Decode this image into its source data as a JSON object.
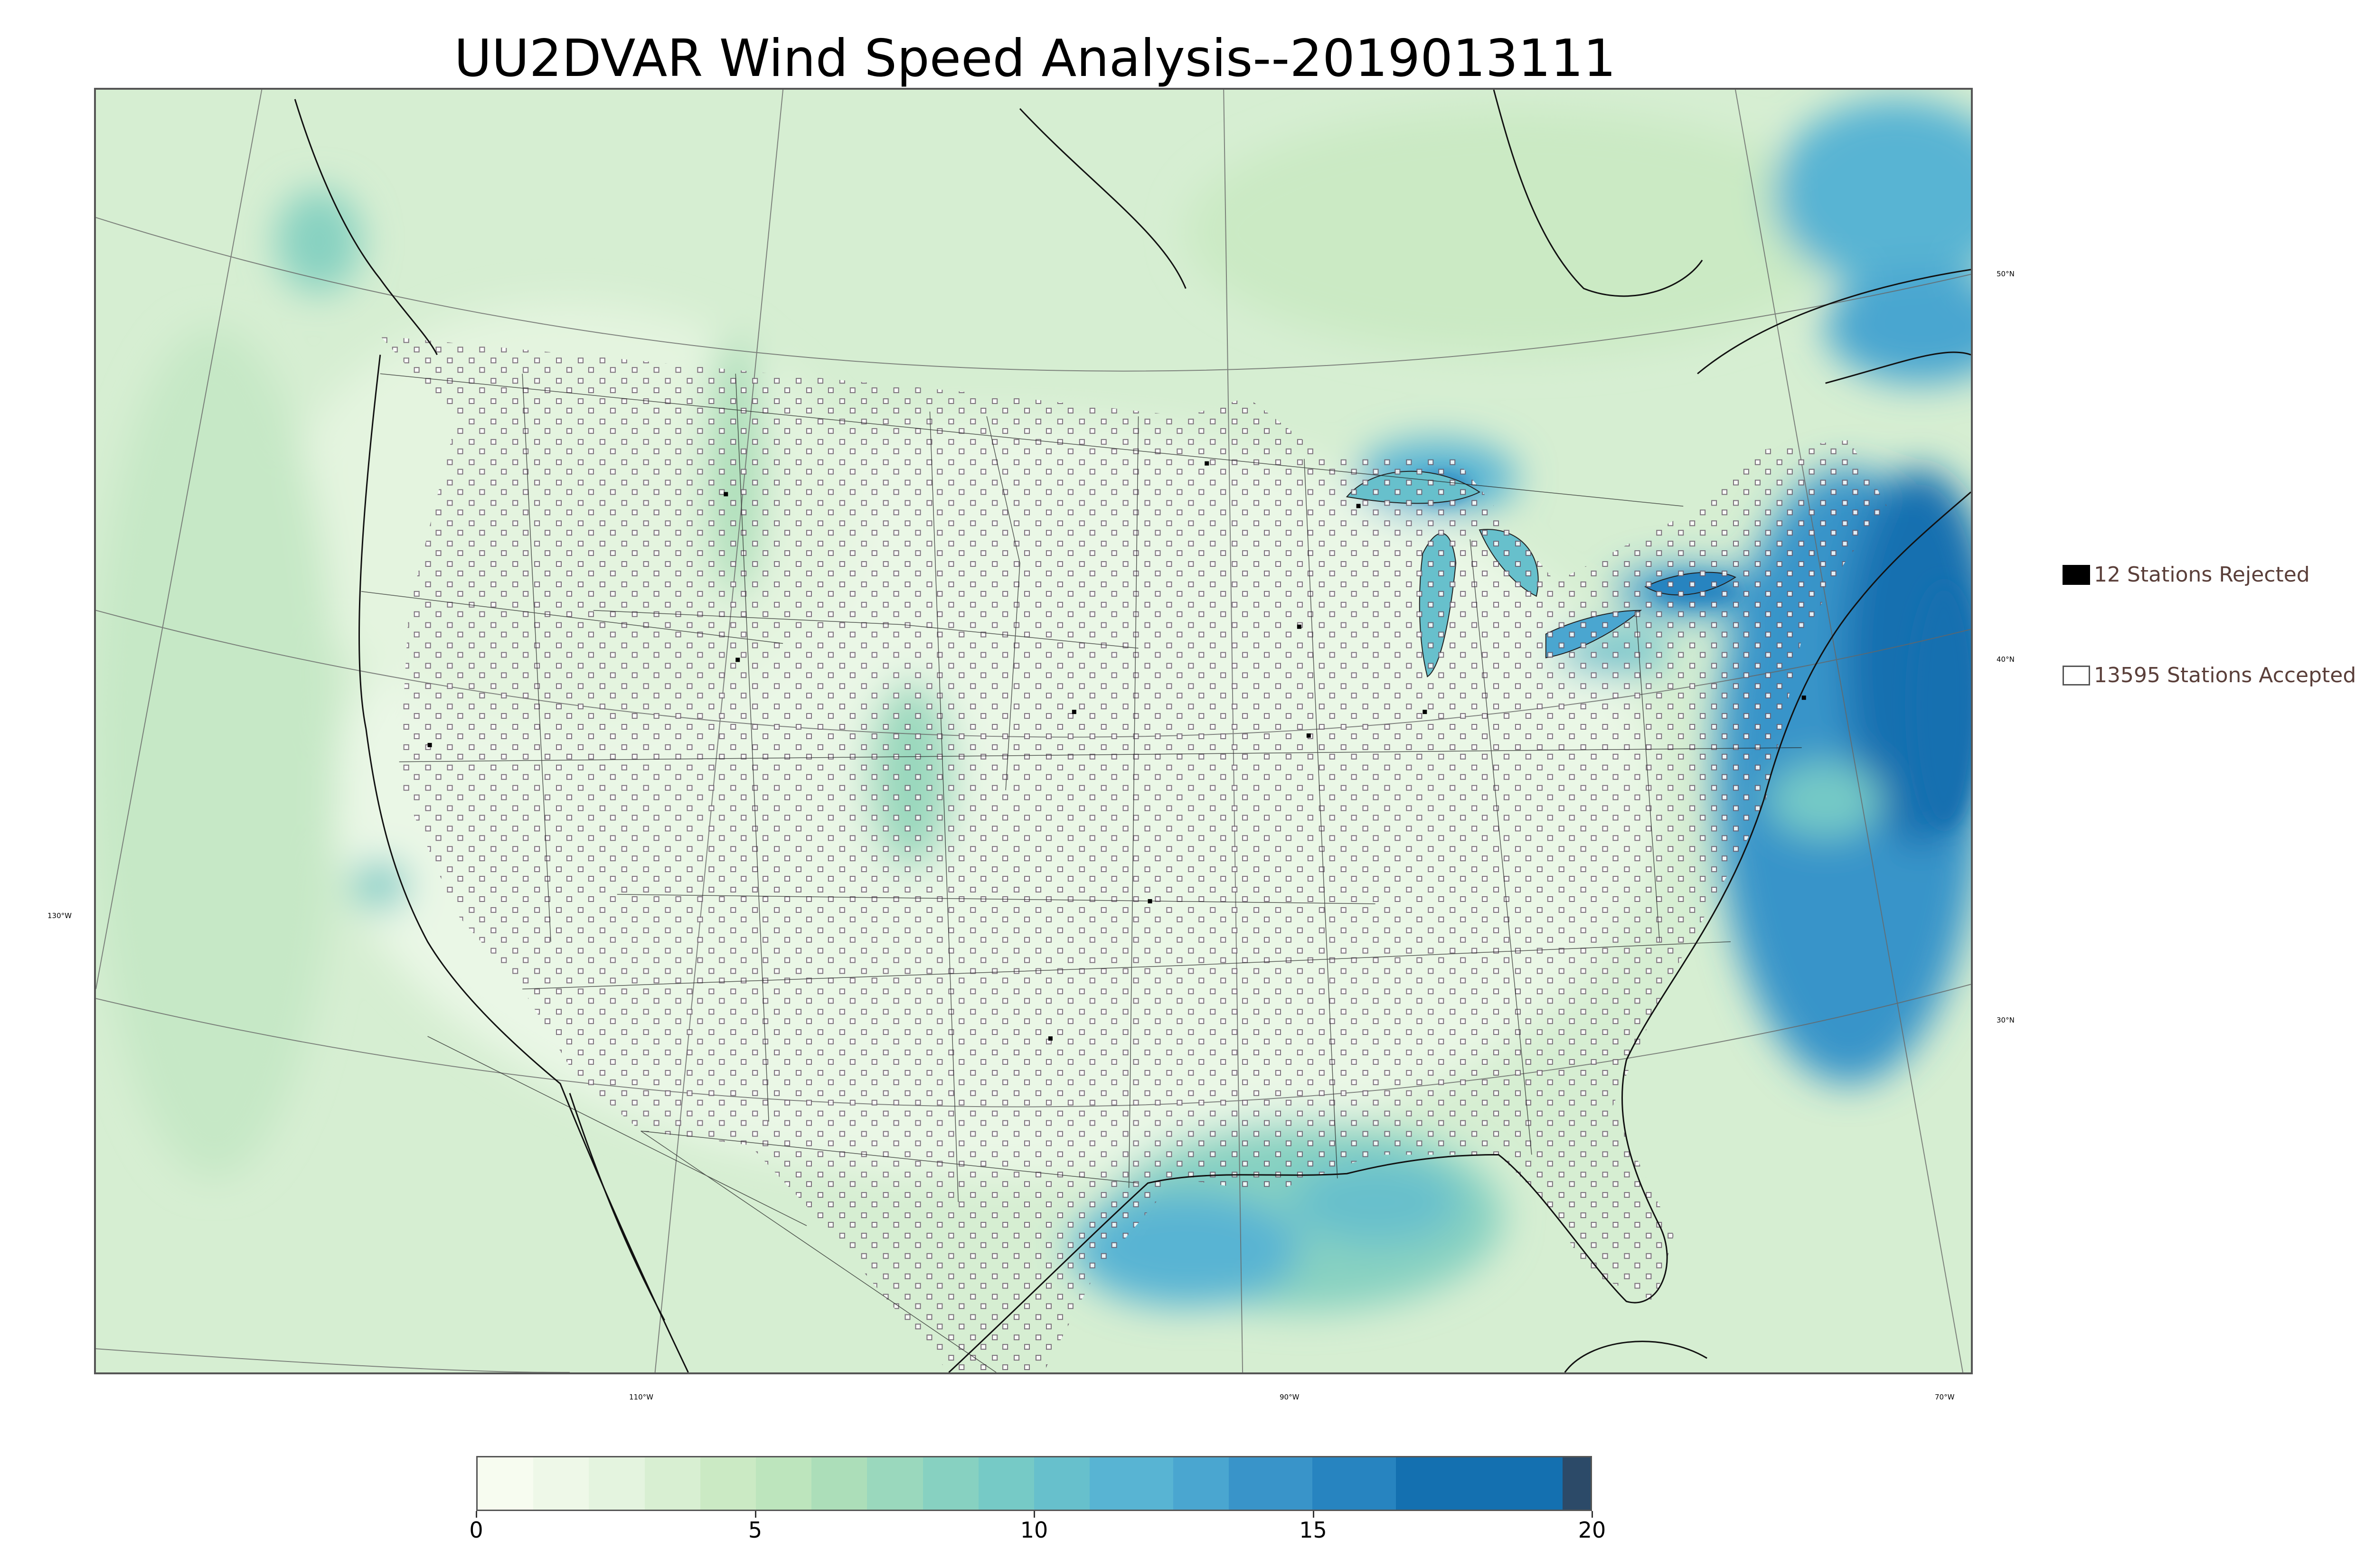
{
  "title": "UU2DVAR Wind Speed Analysis--2019013111",
  "map": {
    "projection": "lambert-conformal",
    "background_field": "wind speed",
    "lat_labels": [
      "50°N",
      "40°N",
      "30°N"
    ],
    "lon_labels": [
      "130°W",
      "110°W",
      "90°W",
      "70°W"
    ]
  },
  "legend": {
    "rejected": {
      "label": "12 Stations Rejected",
      "color": "#000000"
    },
    "accepted": {
      "label": "13595 Stations Accepted",
      "color": "#ffffff"
    }
  },
  "colorbar": {
    "min": 0,
    "max": 20,
    "ticks": [
      "0",
      "5",
      "10",
      "15",
      "20"
    ],
    "bands": [
      {
        "from": 0,
        "to": 1,
        "color": "#f7fcf0"
      },
      {
        "from": 1,
        "to": 2,
        "color": "#eef8e8"
      },
      {
        "from": 2,
        "to": 3,
        "color": "#e4f4df"
      },
      {
        "from": 3,
        "to": 4,
        "color": "#d8efd2"
      },
      {
        "from": 4,
        "to": 5,
        "color": "#cbeac4"
      },
      {
        "from": 5,
        "to": 6,
        "color": "#bde5bd"
      },
      {
        "from": 6,
        "to": 7,
        "color": "#acdeb9"
      },
      {
        "from": 7,
        "to": 8,
        "color": "#9ad8bd"
      },
      {
        "from": 8,
        "to": 9,
        "color": "#87d1c1"
      },
      {
        "from": 9,
        "to": 10,
        "color": "#76cac6"
      },
      {
        "from": 10,
        "to": 11,
        "color": "#67c0cc"
      },
      {
        "from": 11,
        "to": 12.5,
        "color": "#58b4d3"
      },
      {
        "from": 12.5,
        "to": 13.5,
        "color": "#4aa6d0"
      },
      {
        "from": 13.5,
        "to": 15,
        "color": "#3994c9"
      },
      {
        "from": 15,
        "to": 16.5,
        "color": "#2784c0"
      },
      {
        "from": 16.5,
        "to": 19.5,
        "color": "#1470b0"
      },
      {
        "from": 19.5,
        "to": 20,
        "color": "#2c4a68"
      }
    ]
  }
}
